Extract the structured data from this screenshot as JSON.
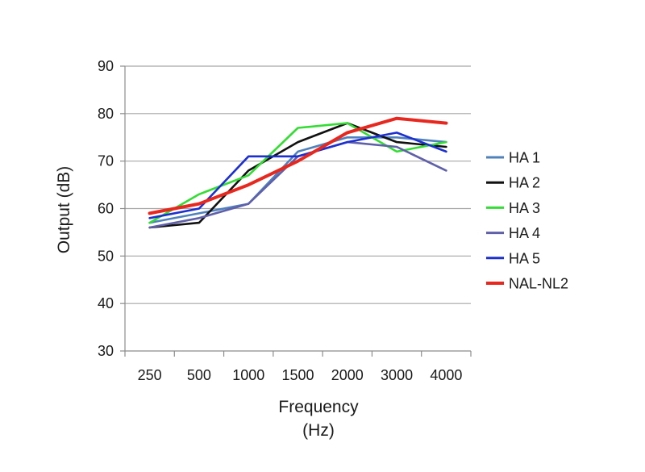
{
  "chart_data": {
    "type": "line",
    "title": "",
    "xlabel": [
      "Frequency",
      "(Hz)"
    ],
    "ylabel": "Output (dB)",
    "ylim": [
      30,
      90
    ],
    "ytick_step": 10,
    "grid": "horizontal",
    "legend_position": "right",
    "categories": [
      "250",
      "500",
      "1000",
      "1500",
      "2000",
      "3000",
      "4000"
    ],
    "series": [
      {
        "name": "HA 1",
        "color": "#4f81bd",
        "values": [
          57,
          59,
          61,
          72,
          75,
          75,
          74
        ]
      },
      {
        "name": "HA 2",
        "color": "#111111",
        "values": [
          56,
          57,
          68,
          74,
          78,
          74,
          73
        ]
      },
      {
        "name": "HA 3",
        "color": "#33dd33",
        "values": [
          57,
          63,
          67,
          77,
          78,
          72,
          74
        ]
      },
      {
        "name": "HA 4",
        "color": "#5f5faa",
        "values": [
          56,
          58,
          61,
          71,
          74,
          73,
          68
        ]
      },
      {
        "name": "HA 5",
        "color": "#1c2fd0",
        "values": [
          58,
          60,
          71,
          71,
          74,
          76,
          72
        ]
      },
      {
        "name": "NAL-NL2",
        "color": "#e8281f",
        "values": [
          59,
          61,
          65,
          70,
          76,
          79,
          78
        ]
      }
    ]
  }
}
